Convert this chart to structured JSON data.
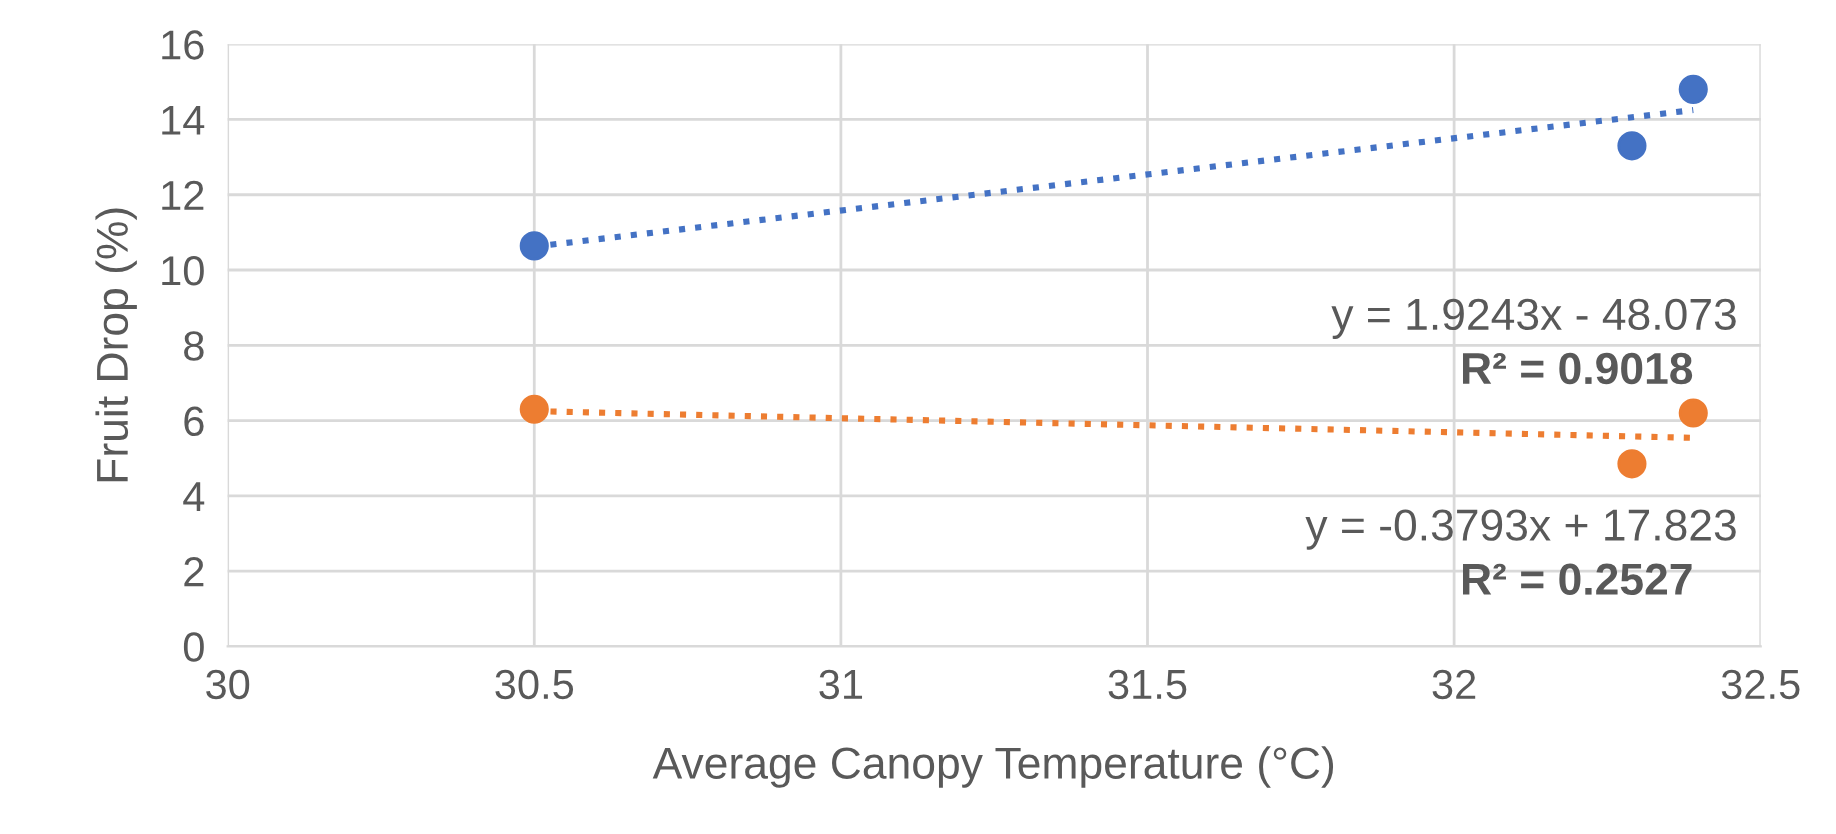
{
  "chart_data": {
    "type": "scatter",
    "xlabel": "Average Canopy Temperature (°C)",
    "ylabel": "Fruit Drop (%)",
    "xlim": [
      30,
      32.5
    ],
    "xticks": [
      30,
      30.5,
      31,
      31.5,
      32,
      32.5
    ],
    "ylim": [
      0,
      16
    ],
    "yticks": [
      0,
      2,
      4,
      6,
      8,
      10,
      12,
      14,
      16
    ],
    "grid": true,
    "series": [
      {
        "color": "#4472c4",
        "marker": "circle",
        "x": [
          30.5,
          32.29,
          32.39
        ],
        "values": [
          10.64,
          13.3,
          14.8
        ]
      },
      {
        "color": "#ed7d31",
        "marker": "circle",
        "x": [
          30.5,
          32.29,
          32.39
        ],
        "values": [
          6.3,
          4.85,
          6.2
        ]
      },
      {
        "type": "line",
        "color": "#4472c4",
        "marker": "none",
        "line_style": "dotted",
        "x": [
          30.5,
          32.39
        ],
        "values": [
          10.62,
          14.25
        ]
      },
      {
        "type": "line",
        "color": "#ed7d31",
        "marker": "none",
        "line_style": "dotted",
        "x": [
          30.5,
          32.39
        ],
        "values": [
          6.25,
          5.54
        ]
      }
    ],
    "annotations": [
      "y = 1.9243x - 48.073",
      "R² = 0.9018",
      "y = -0.3793x + 17.823",
      "R² = 0.2527"
    ]
  }
}
